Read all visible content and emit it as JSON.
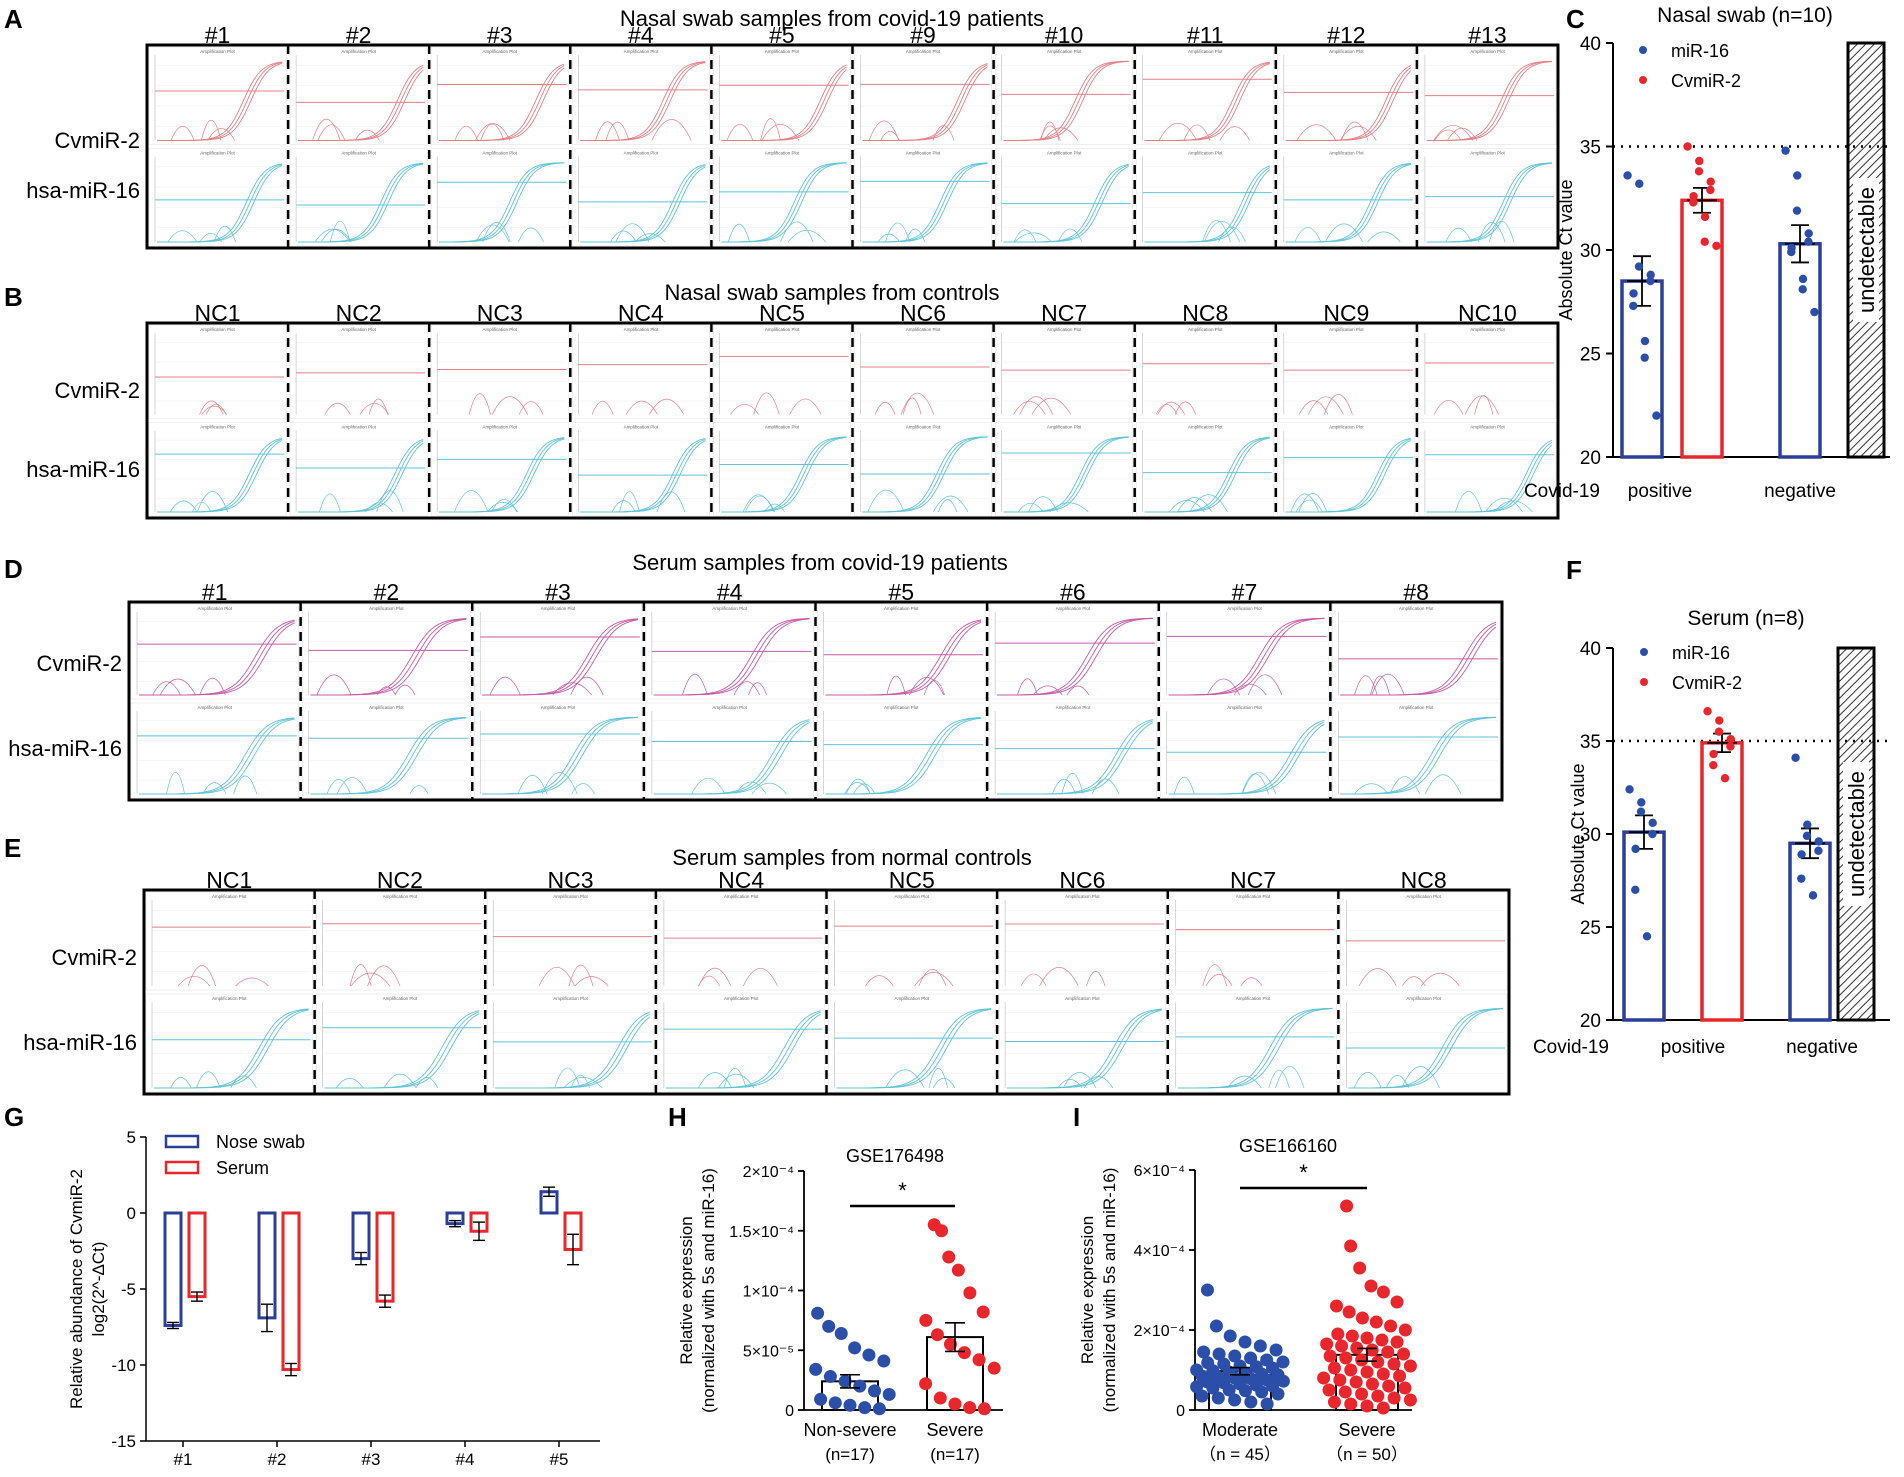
{
  "colors": {
    "blue": "#2b3f99",
    "red": "#e8262c",
    "pink_trace": "#e57f86",
    "magenta_trace": "#c85aa6",
    "cyan_trace": "#5fc4d6",
    "dot_blue": "#2b4fa8",
    "dot_red": "#e8262c"
  },
  "panels": {
    "A": {
      "letter": "A",
      "title": "Nasal swab samples from covid-19 patients",
      "columns": [
        "#1",
        "#2",
        "#3",
        "#4",
        "#5",
        "#9",
        "#10",
        "#11",
        "#12",
        "#13"
      ],
      "rows": [
        "CvmiR-2",
        "hsa-miR-16"
      ]
    },
    "B": {
      "letter": "B",
      "title": "Nasal swab samples from controls",
      "columns": [
        "NC1",
        "NC2",
        "NC3",
        "NC4",
        "NC5",
        "NC6",
        "NC7",
        "NC8",
        "NC9",
        "NC10"
      ],
      "rows": [
        "CvmiR-2",
        "hsa-miR-16"
      ]
    },
    "D": {
      "letter": "D",
      "title": "Serum samples from covid-19 patients",
      "columns": [
        "#1",
        "#2",
        "#3",
        "#4",
        "#5",
        "#6",
        "#7",
        "#8"
      ],
      "rows": [
        "CvmiR-2",
        "hsa-miR-16"
      ]
    },
    "E": {
      "letter": "E",
      "title": "Serum samples from normal controls",
      "columns": [
        "NC1",
        "NC2",
        "NC3",
        "NC4",
        "NC5",
        "NC6",
        "NC7",
        "NC8"
      ],
      "rows": [
        "CvmiR-2",
        "hsa-miR-16"
      ]
    },
    "C": {
      "letter": "C"
    },
    "F": {
      "letter": "F"
    },
    "G": {
      "letter": "G"
    },
    "H": {
      "letter": "H"
    },
    "I": {
      "letter": "I"
    }
  },
  "chart_data": [
    {
      "id": "C",
      "type": "bar",
      "title": "Nasal swab (n=10)",
      "ylabel": "Absolute Ct value",
      "ylim": [
        20,
        40
      ],
      "yticks": [
        20,
        25,
        30,
        35,
        40
      ],
      "xlabel_prefix": "Covid-19",
      "groups": [
        "positive",
        "negative"
      ],
      "legend": [
        "miR-16",
        "CvmiR-2"
      ],
      "threshold": 35,
      "annotation": "undetectable",
      "series": [
        {
          "name": "miR-16",
          "group": "positive",
          "mean": 28.5,
          "sem": 1.2,
          "points": [
            33.6,
            33.2,
            29.2,
            28.8,
            28.5,
            27.9,
            27.3,
            25.6,
            24.8,
            22.0
          ]
        },
        {
          "name": "CvmiR-2",
          "group": "positive",
          "mean": 32.4,
          "sem": 0.6,
          "points": [
            35.0,
            34.3,
            33.8,
            33.3,
            32.9,
            32.6,
            32.3,
            31.6,
            30.4,
            30.2
          ]
        },
        {
          "name": "miR-16",
          "group": "negative",
          "mean": 30.3,
          "sem": 0.9,
          "points": [
            34.8,
            33.6,
            31.9,
            30.8,
            30.4,
            30.1,
            29.9,
            28.6,
            28.1,
            27.0
          ]
        }
      ]
    },
    {
      "id": "F",
      "type": "bar",
      "title": "Serum (n=8)",
      "ylabel": "Absolute Ct value",
      "ylim": [
        20,
        40
      ],
      "yticks": [
        20,
        25,
        30,
        35,
        40
      ],
      "xlabel_prefix": "Covid-19",
      "groups": [
        "positive",
        "negative"
      ],
      "legend": [
        "miR-16",
        "CvmiR-2"
      ],
      "threshold": 35,
      "annotation": "undetectable",
      "series": [
        {
          "name": "miR-16",
          "group": "positive",
          "mean": 30.1,
          "sem": 0.9,
          "points": [
            32.4,
            31.7,
            31.2,
            30.6,
            30.0,
            29.2,
            27.0,
            24.5
          ]
        },
        {
          "name": "CvmiR-2",
          "group": "positive",
          "mean": 34.9,
          "sem": 0.5,
          "points": [
            36.6,
            36.1,
            35.5,
            35.1,
            34.7,
            34.3,
            33.7,
            33.0
          ]
        },
        {
          "name": "miR-16",
          "group": "negative",
          "mean": 29.5,
          "sem": 0.8,
          "points": [
            34.1,
            30.5,
            29.9,
            29.6,
            29.1,
            28.9,
            27.6,
            26.7
          ]
        }
      ]
    },
    {
      "id": "G",
      "type": "bar",
      "ylabel_line1": "Relative abundance of CvmiR-2",
      "ylabel_line2": "log2(2^-ΔCt)",
      "ylim": [
        -15,
        5
      ],
      "yticks": [
        5,
        0,
        -5,
        -10,
        -15
      ],
      "categories": [
        "#1",
        "#2",
        "#3",
        "#4",
        "#5"
      ],
      "series": [
        {
          "name": "Nose swab",
          "values": [
            -7.4,
            -6.9,
            -3.0,
            -0.7,
            1.4
          ],
          "err": [
            0.2,
            0.9,
            0.4,
            0.2,
            0.3
          ]
        },
        {
          "name": "Serum",
          "values": [
            -5.5,
            -10.3,
            -5.8,
            -1.2,
            -2.4
          ],
          "err": [
            0.3,
            0.4,
            0.4,
            0.6,
            1.0
          ]
        }
      ]
    },
    {
      "id": "H",
      "type": "scatter-bar",
      "title": "GSE176498",
      "ylabel_line1": "Relative expression",
      "ylabel_line2": "(normalized with 5s and miR-16)",
      "ylim": [
        0,
        0.0002
      ],
      "yticks": [
        0,
        5e-05,
        0.0001,
        0.00015,
        0.0002
      ],
      "ytick_labels": [
        "0",
        "5×10⁻⁵",
        "1×10⁻⁴",
        "1.5×10⁻⁴",
        "2×10⁻⁴"
      ],
      "significance": "*",
      "groups": [
        {
          "name": "Non-severe",
          "n_label": "(n=17)",
          "mean": 2.4e-05,
          "sem": 5.5e-06,
          "points": [
            8.1e-05,
            7e-05,
            6.4e-05,
            5.2e-05,
            4.6e-05,
            4.1e-05,
            3.4e-05,
            2.8e-05,
            2.4e-05,
            2e-05,
            1.6e-05,
            1.3e-05,
            9e-06,
            6e-06,
            4e-06,
            2e-06,
            1e-06
          ]
        },
        {
          "name": "Severe",
          "n_label": "(n=17)",
          "mean": 6.1e-05,
          "sem": 1.2e-05,
          "points": [
            0.000155,
            0.00015,
            0.000128,
            0.000117,
            9.8e-05,
            8.2e-05,
            7.5e-05,
            6.3e-05,
            5.5e-05,
            4.8e-05,
            4.2e-05,
            3.5e-05,
            2.2e-05,
            1e-05,
            5e-06,
            2e-06,
            1e-06
          ]
        }
      ]
    },
    {
      "id": "I",
      "type": "scatter-bar",
      "title": "GSE166160",
      "ylabel_line1": "Relative expression",
      "ylabel_line2": "(normalized with 5s and miR-16)",
      "ylim": [
        0,
        0.0006
      ],
      "yticks": [
        0,
        0.0002,
        0.0004,
        0.0006
      ],
      "ytick_labels": [
        "0",
        "2×10⁻⁴",
        "4×10⁻⁴",
        "6×10⁻⁴"
      ],
      "significance": "*",
      "groups": [
        {
          "name": "Moderate",
          "n_label": "（n = 45）",
          "mean": 9.7e-05,
          "sem": 9e-06,
          "points": [
            0.0003,
            0.00021,
            0.000185,
            0.00017,
            0.00016,
            0.00015,
            0.000145,
            0.00014,
            0.000135,
            0.00013,
            0.000125,
            0.00012,
            0.000118,
            0.000115,
            0.00011,
            0.000108,
            0.000105,
            0.0001,
            9.8e-05,
            9.5e-05,
            9.2e-05,
            9e-05,
            8.8e-05,
            8.5e-05,
            8.2e-05,
            8e-05,
            7.8e-05,
            7.5e-05,
            7.2e-05,
            7e-05,
            6.8e-05,
            6.5e-05,
            6.2e-05,
            6e-05,
            5.8e-05,
            5.5e-05,
            5e-05,
            4.8e-05,
            4.5e-05,
            4e-05,
            3.5e-05,
            3e-05,
            2.5e-05,
            2e-05,
            1.5e-05
          ]
        },
        {
          "name": "Severe",
          "n_label": "（n = 50）",
          "mean": 0.000138,
          "sem": 1.6e-05,
          "points": [
            0.00051,
            0.00041,
            0.000355,
            0.00031,
            0.000295,
            0.00027,
            0.00026,
            0.000245,
            0.00023,
            0.00022,
            0.00021,
            0.0002,
            0.00019,
            0.000185,
            0.00018,
            0.000175,
            0.00017,
            0.000165,
            0.00016,
            0.000155,
            0.00015,
            0.000145,
            0.00014,
            0.000135,
            0.00013,
            0.000125,
            0.00012,
            0.000115,
            0.00011,
            0.000105,
            0.0001,
            9.5e-05,
            9e-05,
            8.5e-05,
            8e-05,
            7.5e-05,
            7e-05,
            6.5e-05,
            6e-05,
            5.5e-05,
            5e-05,
            4.5e-05,
            4e-05,
            3.5e-05,
            3e-05,
            2.5e-05,
            2e-05,
            1.5e-05,
            1e-05,
            5e-06
          ]
        }
      ]
    }
  ]
}
